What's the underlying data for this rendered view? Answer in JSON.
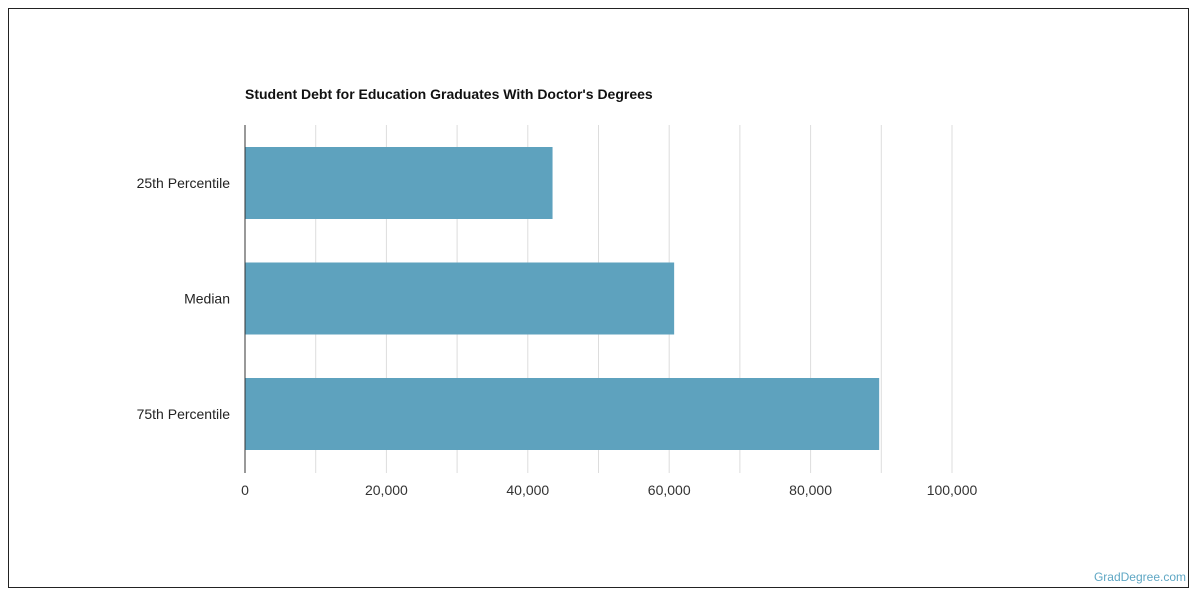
{
  "chart_data": {
    "type": "bar",
    "orientation": "horizontal",
    "title": "Student Debt for Education Graduates With Doctor's Degrees",
    "categories": [
      "25th Percentile",
      "Median",
      "75th Percentile"
    ],
    "values": [
      43500,
      60700,
      89700
    ],
    "xlim": [
      0,
      100000
    ],
    "xticks": [
      0,
      20000,
      40000,
      60000,
      80000,
      100000
    ],
    "xtick_labels": [
      "0",
      "20,000",
      "40,000",
      "60,000",
      "80,000",
      "100,000"
    ],
    "grid": true,
    "bar_color": "#5ea2be",
    "xlabel": "",
    "ylabel": ""
  },
  "footer": {
    "source": "GradDegree.com"
  },
  "colors": {
    "bar": "#5ea2be",
    "grid": "#dddddd",
    "axis": "#333333",
    "watermark": "#5fa7c4"
  }
}
